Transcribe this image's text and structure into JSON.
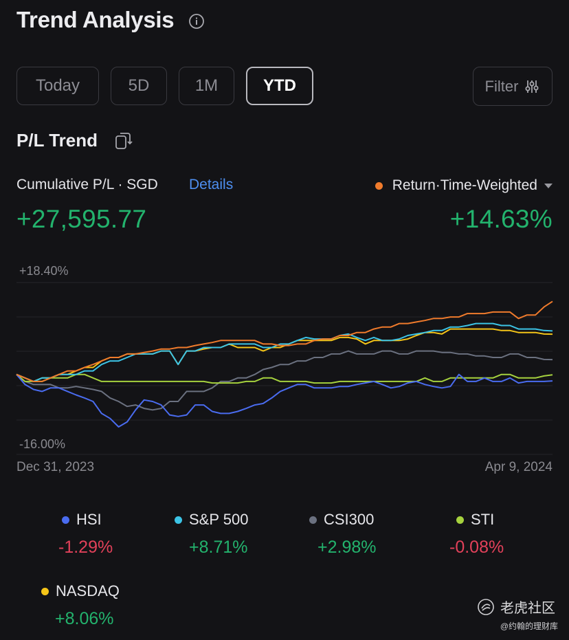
{
  "header": {
    "title": "Trend Analysis",
    "info_icon": "info-icon"
  },
  "tabs": [
    {
      "label": "Today",
      "active": false
    },
    {
      "label": "5D",
      "active": false
    },
    {
      "label": "1M",
      "active": false
    },
    {
      "label": "YTD",
      "active": true
    }
  ],
  "filter": {
    "label": "Filter",
    "icon": "sliders-icon"
  },
  "section": {
    "title": "P/L Trend",
    "icon": "copy-icon"
  },
  "summary": {
    "cum_label": "Cumulative P/L · SGD",
    "details_link": "Details",
    "return_label": "Return·Time-Weighted",
    "pl_value": "+27,595.77",
    "return_value": "+14.63%"
  },
  "colors": {
    "portfolio": "#f07b2c",
    "hsi": "#4a6cf0",
    "sp500": "#3cc4e6",
    "csi300": "#6b7180",
    "sti": "#a6d23e",
    "nasdaq": "#f5c518",
    "positive": "#23b36d",
    "negative": "#e2415a",
    "link": "#4e8ff0"
  },
  "chart_data": {
    "type": "line",
    "y_max_label": "+18.40%",
    "y_min_label": "-16.00%",
    "ylim": [
      -16.0,
      18.4
    ],
    "x_start_label": "Dec 31, 2023",
    "x_end_label": "Apr 9, 2024",
    "grid": true,
    "series": [
      {
        "name": "Portfolio",
        "values": [
          0.0,
          -0.7,
          -1.4,
          -1.4,
          -0.7,
          0.0,
          0.7,
          0.7,
          1.4,
          2.0,
          2.7,
          3.4,
          3.4,
          4.1,
          4.1,
          4.4,
          4.7,
          5.1,
          5.1,
          5.4,
          5.4,
          5.8,
          6.1,
          6.4,
          6.8,
          6.8,
          6.8,
          6.8,
          6.8,
          6.1,
          6.1,
          5.8,
          5.8,
          6.1,
          6.1,
          6.8,
          7.1,
          7.1,
          7.8,
          7.8,
          8.4,
          8.4,
          9.1,
          9.5,
          9.5,
          10.2,
          10.2,
          10.5,
          10.8,
          11.2,
          11.2,
          11.5,
          11.5,
          12.2,
          12.2,
          12.2,
          12.5,
          12.5,
          12.5,
          11.2,
          11.9,
          11.9,
          13.5,
          14.63
        ]
      },
      {
        "name": "HSI",
        "values": [
          0.0,
          -2.0,
          -3.0,
          -3.4,
          -2.7,
          -2.7,
          -3.4,
          -4.1,
          -4.7,
          -5.4,
          -7.8,
          -8.8,
          -10.5,
          -9.5,
          -7.1,
          -5.1,
          -5.4,
          -6.1,
          -8.1,
          -8.4,
          -8.1,
          -6.1,
          -6.1,
          -7.4,
          -7.8,
          -7.8,
          -7.4,
          -6.8,
          -6.1,
          -5.8,
          -4.7,
          -3.4,
          -2.7,
          -2.0,
          -2.0,
          -2.7,
          -2.7,
          -2.7,
          -2.4,
          -2.4,
          -2.0,
          -1.7,
          -1.4,
          -2.0,
          -2.7,
          -2.4,
          -1.7,
          -1.4,
          -2.0,
          -2.4,
          -2.7,
          -2.4,
          0.0,
          -1.4,
          -1.4,
          -0.7,
          -1.4,
          -1.4,
          -0.7,
          -1.7,
          -1.4,
          -1.4,
          -1.4,
          -1.29
        ]
      },
      {
        "name": "S&P 500",
        "values": [
          0.0,
          -0.7,
          -1.4,
          -0.7,
          -0.7,
          0.0,
          0.0,
          0.0,
          0.7,
          0.7,
          2.0,
          2.7,
          2.7,
          3.4,
          4.1,
          4.1,
          4.1,
          4.7,
          4.7,
          2.0,
          4.7,
          4.7,
          5.4,
          5.4,
          5.4,
          6.1,
          6.1,
          6.1,
          6.1,
          5.4,
          5.4,
          6.1,
          6.1,
          6.8,
          7.4,
          7.1,
          7.1,
          7.1,
          7.8,
          8.1,
          7.4,
          6.8,
          7.4,
          6.8,
          6.8,
          7.1,
          7.8,
          8.1,
          8.4,
          8.8,
          8.8,
          9.5,
          9.5,
          9.8,
          10.2,
          10.2,
          10.2,
          9.8,
          9.8,
          9.1,
          9.1,
          9.1,
          8.8,
          8.71
        ]
      },
      {
        "name": "CSI300",
        "values": [
          0.0,
          -1.4,
          -2.0,
          -2.0,
          -2.0,
          -2.7,
          -2.7,
          -2.4,
          -2.7,
          -3.0,
          -3.4,
          -4.7,
          -5.4,
          -6.4,
          -6.1,
          -6.8,
          -7.1,
          -6.8,
          -5.4,
          -5.4,
          -3.4,
          -3.4,
          -3.4,
          -2.7,
          -1.4,
          -1.4,
          -0.7,
          -0.7,
          0.0,
          1.0,
          1.4,
          2.0,
          2.0,
          2.7,
          2.7,
          3.4,
          3.4,
          4.1,
          4.1,
          4.7,
          4.1,
          4.1,
          4.1,
          4.7,
          4.7,
          4.1,
          4.1,
          4.7,
          4.7,
          4.7,
          4.4,
          4.4,
          4.1,
          4.1,
          3.7,
          3.7,
          3.4,
          3.4,
          4.1,
          4.1,
          3.4,
          3.4,
          3.0,
          2.98
        ]
      },
      {
        "name": "STI",
        "values": [
          0.0,
          -1.4,
          -1.4,
          -1.4,
          -0.7,
          -0.7,
          -0.7,
          0.0,
          0.0,
          -0.7,
          -1.4,
          -1.4,
          -1.4,
          -1.4,
          -1.4,
          -1.4,
          -1.4,
          -1.4,
          -1.4,
          -1.4,
          -1.4,
          -1.4,
          -1.4,
          -1.7,
          -1.7,
          -1.7,
          -1.7,
          -1.4,
          -1.4,
          -0.7,
          -0.7,
          -1.4,
          -1.4,
          -1.4,
          -1.4,
          -1.7,
          -1.7,
          -1.7,
          -1.4,
          -1.4,
          -1.4,
          -1.4,
          -1.4,
          -1.4,
          -1.4,
          -1.4,
          -1.4,
          -1.4,
          -0.7,
          -1.4,
          -1.4,
          -0.7,
          -0.7,
          -0.7,
          -0.7,
          -0.7,
          -0.7,
          0.0,
          0.0,
          -0.7,
          -0.7,
          -0.7,
          -0.3,
          -0.08
        ]
      },
      {
        "name": "NASDAQ",
        "values": [
          0.0,
          -0.7,
          -1.4,
          -0.7,
          -0.7,
          0.0,
          0.0,
          0.7,
          1.4,
          1.4,
          2.7,
          3.4,
          3.4,
          4.1,
          4.1,
          4.1,
          4.1,
          4.7,
          4.7,
          2.0,
          4.7,
          4.7,
          5.1,
          5.4,
          5.4,
          6.1,
          5.4,
          5.4,
          5.4,
          4.7,
          5.4,
          5.4,
          6.1,
          6.8,
          6.8,
          6.8,
          6.8,
          6.8,
          7.4,
          7.4,
          7.1,
          6.1,
          6.8,
          6.8,
          6.8,
          6.8,
          7.1,
          7.8,
          8.4,
          8.4,
          8.1,
          9.1,
          9.1,
          9.1,
          9.1,
          9.1,
          9.1,
          8.8,
          8.8,
          8.4,
          8.4,
          8.4,
          8.1,
          8.06
        ]
      }
    ]
  },
  "legend": [
    {
      "name": "HSI",
      "value": "-1.29%",
      "trend": "neg"
    },
    {
      "name": "S&P 500",
      "value": "+8.71%",
      "trend": "pos"
    },
    {
      "name": "CSI300",
      "value": "+2.98%",
      "trend": "pos"
    },
    {
      "name": "STI",
      "value": "-0.08%",
      "trend": "neg"
    },
    {
      "name": "NASDAQ",
      "value": "+8.06%",
      "trend": "pos"
    }
  ],
  "watermark": {
    "brand": "老虎社区",
    "author": "@约翰的理财库"
  }
}
